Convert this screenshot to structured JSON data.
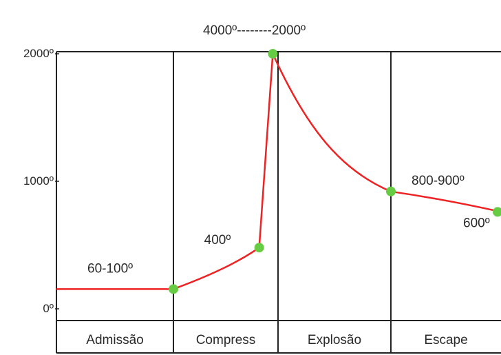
{
  "chart_data": {
    "type": "line",
    "title": "4000º--------2000º",
    "xlabel": "",
    "ylabel": "",
    "ylim": [
      0,
      2000
    ],
    "y_ticks": [
      "0º",
      "1000º",
      "2000º"
    ],
    "phases": [
      "Admissão",
      "Compress",
      "Explosão",
      "Escape"
    ],
    "line_color": "#ee2222",
    "point_color": "#66cc44",
    "grid": false,
    "points": [
      {
        "phase_pos": 0.0,
        "y": 155
      },
      {
        "phase_pos": 1.0,
        "y": 155
      },
      {
        "phase_pos": 1.82,
        "y": 480
      },
      {
        "phase_pos": 1.95,
        "y": 2000
      },
      {
        "phase_pos": 3.0,
        "y": 920
      },
      {
        "phase_pos": 4.0,
        "y": 760
      }
    ],
    "markers": [
      1,
      2,
      3,
      4,
      5
    ],
    "annotations": [
      {
        "text": "60-100º",
        "phase_pos": 0.5,
        "y": 155
      },
      {
        "text": "400º",
        "phase_pos": 1.82,
        "y": 480
      },
      {
        "text": "800-900º",
        "phase_pos": 3.0,
        "y": 920
      },
      {
        "text": "600º",
        "phase_pos": 4.0,
        "y": 760
      }
    ]
  }
}
